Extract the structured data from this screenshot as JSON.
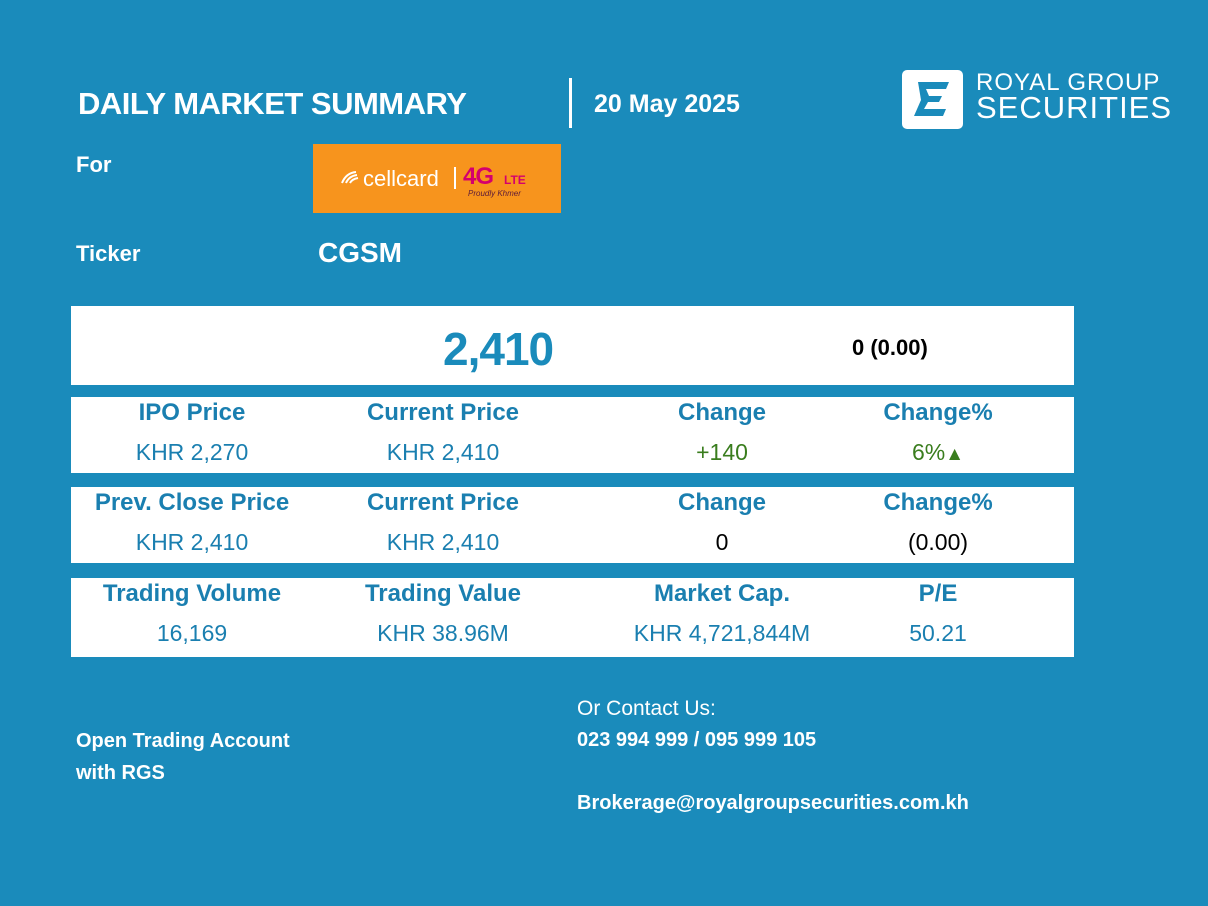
{
  "header": {
    "title": "DAILY MARKET SUMMARY",
    "date": "20 May 2025",
    "brand_line1": "ROYAL GROUP",
    "brand_line2": "SECURITIES"
  },
  "stock": {
    "for_label": "For",
    "company_logo_text": "cellcard",
    "company_logo_4g": "4G",
    "company_logo_lte": "LTE",
    "company_logo_tagline": "Proudly Khmer",
    "ticker_label": "Ticker",
    "ticker": "CGSM"
  },
  "price_box": {
    "price": "2,410",
    "change": "0  (0.00)"
  },
  "ipo_row": {
    "headers": [
      "IPO Price",
      "Current Price",
      "Change",
      "Change%"
    ],
    "values": [
      "KHR 2,270",
      "KHR 2,410",
      "+140",
      "6%"
    ],
    "trend_icon": "▲"
  },
  "prev_row": {
    "headers": [
      "Prev. Close Price",
      "Current Price",
      "Change",
      "Change%"
    ],
    "values": [
      "KHR 2,410",
      "KHR 2,410",
      "0",
      "(0.00)"
    ]
  },
  "volume_row": {
    "headers": [
      "Trading Volume",
      "Trading Value",
      "Market Cap.",
      "P/E"
    ],
    "values": [
      "16,169",
      "KHR 38.96M",
      "KHR 4,721,844M",
      "50.21"
    ]
  },
  "footer": {
    "cta_line1": "Open Trading Account",
    "cta_line2": "with RGS",
    "contact_label": "Or Contact Us:",
    "phone": "023 994 999 / 095 999 105",
    "email": "Brokerage@royalgroupsecurities.com.kh"
  },
  "colors": {
    "background": "#1a8bbb",
    "panel": "#ffffff",
    "accent_blue": "#1a7fb0",
    "positive_green": "#3a7d1e",
    "cellcard_orange": "#f7941d",
    "cellcard_magenta": "#d4006e"
  }
}
